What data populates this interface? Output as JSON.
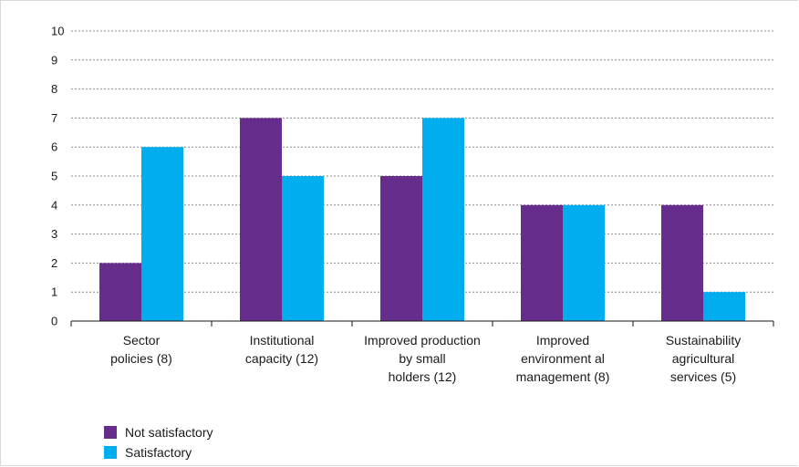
{
  "chart_data": {
    "type": "bar",
    "categories": [
      [
        "Sector",
        "policies (8)"
      ],
      [
        "Institutional",
        "capacity (12)"
      ],
      [
        "Improved production",
        "by small",
        "holders (12)"
      ],
      [
        "Improved",
        "environment al",
        "management (8)"
      ],
      [
        "Sustainability",
        "agricultural",
        "services (5)"
      ]
    ],
    "series": [
      {
        "name": "Not satisfactory",
        "color": "#662D8C",
        "values": [
          2,
          7,
          5,
          4,
          4
        ]
      },
      {
        "name": "Satisfactory",
        "color": "#00AEEF",
        "values": [
          6,
          5,
          7,
          4,
          1
        ]
      }
    ],
    "ylim": [
      0,
      10
    ],
    "yticks": [
      0,
      1,
      2,
      3,
      4,
      5,
      6,
      7,
      8,
      9,
      10
    ],
    "grid": true,
    "legend_position": "bottom-left"
  }
}
